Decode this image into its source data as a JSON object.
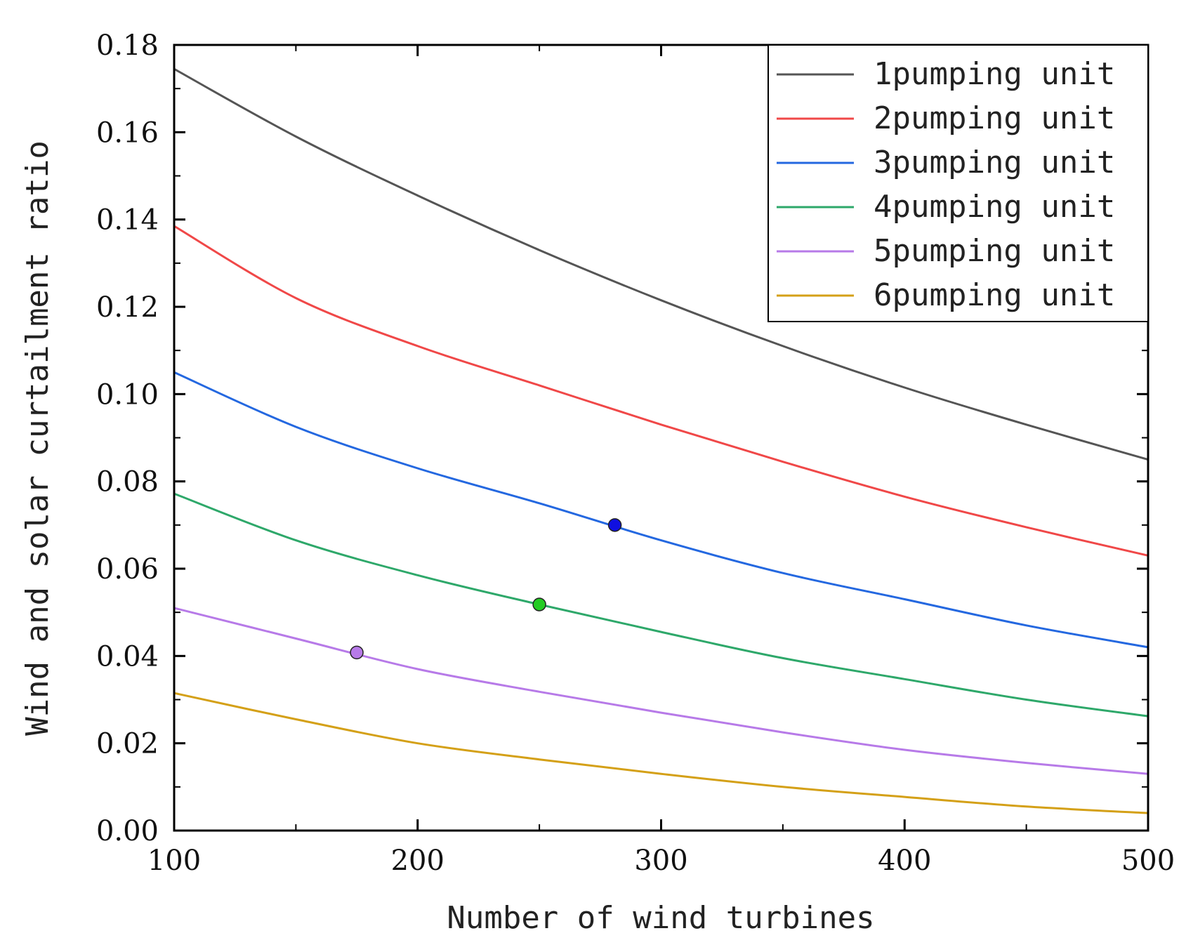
{
  "chart_data": {
    "type": "line",
    "title": "",
    "xlabel": "Number of wind turbines",
    "ylabel": "Wind and solar curtailment ratio",
    "xlim": [
      100,
      500
    ],
    "ylim": [
      0,
      0.18
    ],
    "x_ticks": [
      100,
      200,
      300,
      400,
      500
    ],
    "x_tick_labels": [
      "100",
      "200",
      "300",
      "400",
      "500"
    ],
    "y_ticks": [
      0,
      0.02,
      0.04,
      0.06,
      0.08,
      0.1,
      0.12,
      0.14,
      0.16,
      0.18
    ],
    "y_tick_labels": [
      "0.00",
      "0.02",
      "0.04",
      "0.06",
      "0.08",
      "0.10",
      "0.12",
      "0.14",
      "0.16",
      "0.18"
    ],
    "grid": false,
    "legend_position": "top-right",
    "x": [
      100,
      150,
      200,
      250,
      300,
      350,
      400,
      450,
      500
    ],
    "series": [
      {
        "name": "1pumping unit",
        "color": "#555555",
        "values": [
          0.1745,
          0.159,
          0.1455,
          0.133,
          0.1215,
          0.111,
          0.1015,
          0.093,
          0.085
        ]
      },
      {
        "name": "2pumping unit",
        "color": "#f04848",
        "values": [
          0.1385,
          0.122,
          0.111,
          0.102,
          0.093,
          0.0845,
          0.0765,
          0.0695,
          0.063
        ]
      },
      {
        "name": "3pumping unit",
        "color": "#2468e0",
        "values": [
          0.105,
          0.0925,
          0.083,
          0.075,
          0.0665,
          0.059,
          0.053,
          0.047,
          0.042
        ]
      },
      {
        "name": "4pumping unit",
        "color": "#2ea86a",
        "values": [
          0.0772,
          0.0665,
          0.0585,
          0.0518,
          0.0455,
          0.0395,
          0.0347,
          0.03,
          0.0262
        ]
      },
      {
        "name": "5pumping unit",
        "color": "#b77ae8",
        "values": [
          0.051,
          0.044,
          0.037,
          0.0318,
          0.027,
          0.0225,
          0.0185,
          0.0155,
          0.013
        ]
      },
      {
        "name": "6pumping unit",
        "color": "#d4a017",
        "values": [
          0.0315,
          0.0255,
          0.02,
          0.0163,
          0.013,
          0.01,
          0.0077,
          0.0055,
          0.004
        ]
      }
    ],
    "markers": [
      {
        "series": "3pumping unit",
        "x": 281,
        "y": 0.07,
        "color": "#1010e0"
      },
      {
        "series": "4pumping unit",
        "x": 250,
        "y": 0.0518,
        "color": "#22cc22"
      },
      {
        "series": "5pumping unit",
        "x": 175,
        "y": 0.0408,
        "color": "#b77ae8"
      }
    ]
  }
}
